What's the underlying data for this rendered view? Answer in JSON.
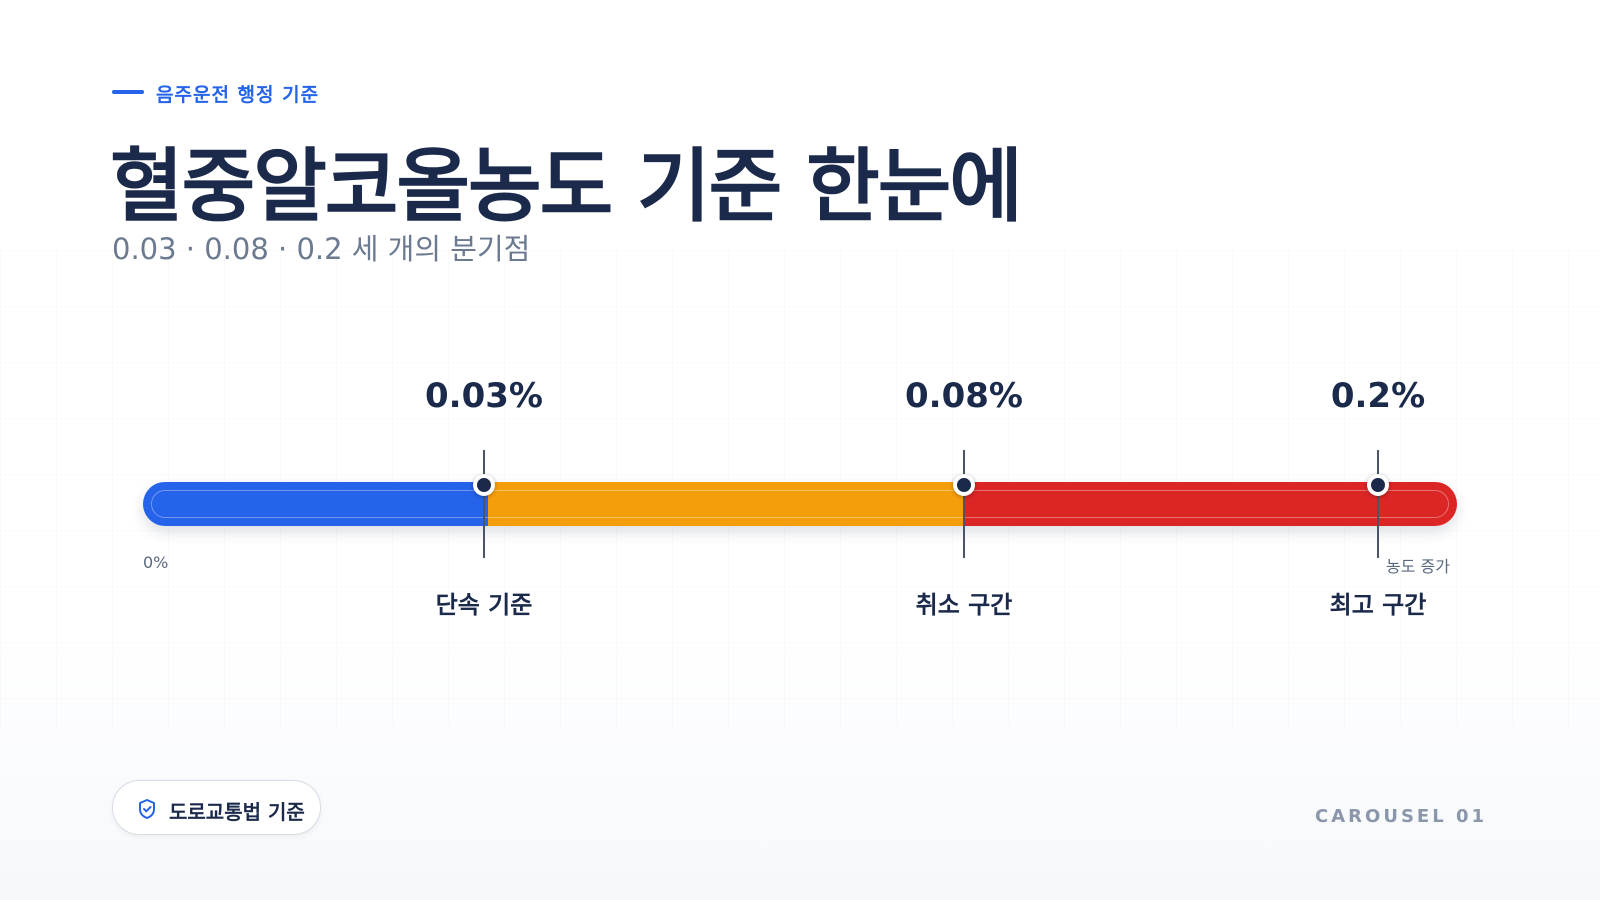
{
  "header": {
    "kicker": "음주운전 행정 기준",
    "title": "혈중알코올농도 기준 한눈에",
    "subtitle": "0.03 · 0.08 · 0.2 세 개의 분기점"
  },
  "scale": {
    "start_label": "0%",
    "end_label": "농도 증가",
    "markers": [
      {
        "value_label": "0.03%",
        "label": "단속 기준"
      },
      {
        "value_label": "0.08%",
        "label": "취소 구간"
      },
      {
        "value_label": "0.2%",
        "label": "최고 구간"
      }
    ]
  },
  "footer": {
    "badge": "도로교통법 기준",
    "page_label": "CAROUSEL 01"
  }
}
